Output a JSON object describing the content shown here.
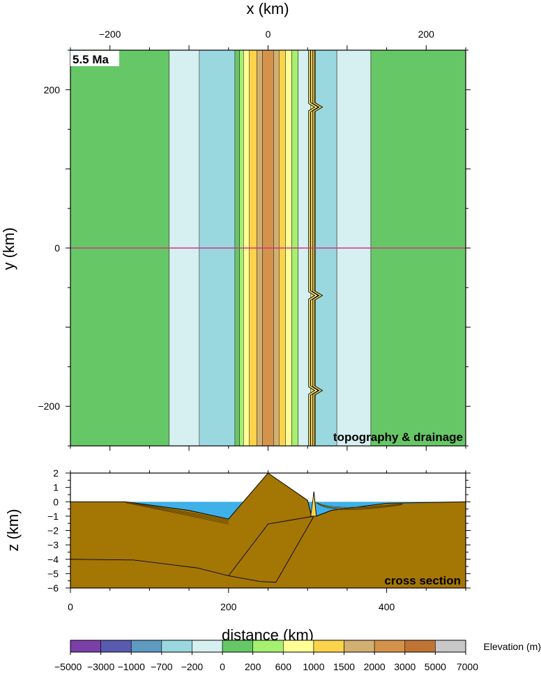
{
  "map": {
    "x_axis_label": "x (km)",
    "y_axis_label": "y (km)",
    "x_ticks": [
      -200,
      0,
      200
    ],
    "y_ticks": [
      200,
      0,
      -200
    ],
    "x_tick_labels": [
      "−200",
      "0",
      "200"
    ],
    "y_tick_labels": [
      "200",
      "0",
      "−200"
    ],
    "time_label": "5.5 Ma",
    "panel_label": "topography & drainage",
    "section_line_color": "#d6338a"
  },
  "section": {
    "x_axis_label": "distance (km)",
    "y_axis_label": "z (km)",
    "x_ticks": [
      0,
      200,
      400
    ],
    "x_tick_labels": [
      "0",
      "200",
      "400"
    ],
    "y_ticks": [
      2,
      1,
      0,
      -1,
      -2,
      -3,
      -4,
      -5,
      -6
    ],
    "y_tick_labels": [
      "2",
      "1",
      "0",
      "−1",
      "−2",
      "−3",
      "−4",
      "−5",
      "−6"
    ],
    "panel_label": "cross section"
  },
  "colorbar": {
    "label": "Elevation (m)",
    "tick_labels": [
      "−5000",
      "−3000",
      "−1000",
      "−700",
      "−200",
      "0",
      "200",
      "600",
      "1000",
      "1500",
      "2000",
      "3000",
      "5000",
      "7000"
    ],
    "colors": [
      "#7b3fa8",
      "#5a5ab0",
      "#5f9ac0",
      "#9ad8e0",
      "#d6eff0",
      "#66c766",
      "#a6f070",
      "#ffff96",
      "#fcd34a",
      "#d2b070",
      "#d4934a",
      "#bf7434",
      "#c8c8c8"
    ]
  },
  "chart_data": [
    {
      "type": "heatmap",
      "title": "",
      "xlabel": "x (km)",
      "ylabel": "y (km)",
      "xlim": [
        -250,
        250
      ],
      "ylim": [
        -250,
        250
      ],
      "annotation": "5.5 Ma",
      "bands_km": [
        {
          "x0": -250,
          "x1": -125,
          "elevation_range_m": "0-200"
        },
        {
          "x0": -125,
          "x1": -87,
          "elevation_range_m": "-200-0"
        },
        {
          "x0": -87,
          "x1": -42,
          "elevation_range_m": "-700 to -200"
        },
        {
          "x0": -42,
          "x1": -36,
          "elevation_range_m": "0-200"
        },
        {
          "x0": -36,
          "x1": -31,
          "elevation_range_m": "200-600"
        },
        {
          "x0": -31,
          "x1": -24,
          "elevation_range_m": "600-1000"
        },
        {
          "x0": -24,
          "x1": -14,
          "elevation_range_m": "1000-1500"
        },
        {
          "x0": -14,
          "x1": -7,
          "elevation_range_m": "1500-2000"
        },
        {
          "x0": -7,
          "x1": 7,
          "elevation_range_m": "2000-3000"
        },
        {
          "x0": 7,
          "x1": 14,
          "elevation_range_m": "1500-2000"
        },
        {
          "x0": 14,
          "x1": 22,
          "elevation_range_m": "1000-1500"
        },
        {
          "x0": 22,
          "x1": 30,
          "elevation_range_m": "600-1000"
        },
        {
          "x0": 30,
          "x1": 38,
          "elevation_range_m": "200-600"
        },
        {
          "x0": 38,
          "x1": 54,
          "elevation_range_m": "-200-0"
        },
        {
          "x0": 54,
          "x1": 60,
          "elevation_range_m": "ridge 0-1500"
        },
        {
          "x0": 60,
          "x1": 87,
          "elevation_range_m": "-700 to -200"
        },
        {
          "x0": 87,
          "x1": 130,
          "elevation_range_m": "-200-0"
        },
        {
          "x0": 130,
          "x1": 250,
          "elevation_range_m": "0-200"
        }
      ],
      "section_line_y_km": 0
    },
    {
      "type": "area",
      "title": "",
      "xlabel": "distance (km)",
      "ylabel": "z (km)",
      "xlim": [
        0,
        500
      ],
      "ylim": [
        -6,
        2
      ],
      "surface_topography": {
        "x": [
          0,
          70,
          150,
          200,
          250,
          300,
          305,
          308,
          311,
          330,
          400,
          500
        ],
        "z": [
          0,
          0,
          -0.6,
          -1.2,
          2.0,
          0.1,
          -1.0,
          0.7,
          -1.0,
          -0.6,
          -0.1,
          0
        ]
      },
      "sea_level_km": 0,
      "horizon_deep": {
        "x": [
          0,
          80,
          160,
          200,
          240,
          260
        ],
        "z": [
          -4.0,
          -4.05,
          -4.6,
          -5.15,
          -5.55,
          -5.6
        ]
      },
      "fault_traces": [
        {
          "x": [
            200,
            250,
            308
          ],
          "z": [
            -5.15,
            -1.55,
            -1.0
          ]
        },
        {
          "x": [
            260,
            308
          ],
          "z": [
            -5.6,
            -1.0
          ]
        }
      ]
    }
  ]
}
